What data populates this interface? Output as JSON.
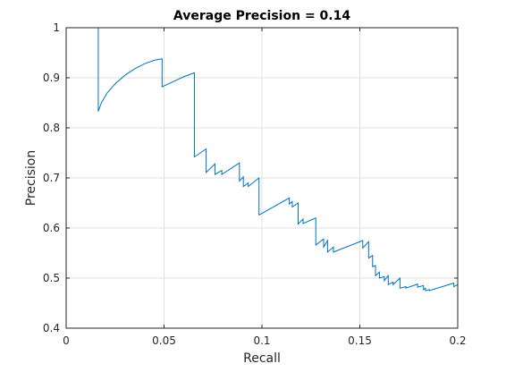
{
  "chart_data": {
    "type": "line",
    "title": "Average Precision = 0.14",
    "xlabel": "Recall",
    "ylabel": "Precision",
    "xlim": [
      0,
      0.2
    ],
    "ylim": [
      0.4,
      1
    ],
    "xticks": [
      0,
      0.05,
      0.1,
      0.15,
      0.2
    ],
    "xtick_labels": [
      "0",
      "0.05",
      "0.1",
      "0.15",
      "0.2"
    ],
    "yticks": [
      0.4,
      0.5,
      0.6,
      0.7,
      0.8,
      0.9,
      1
    ],
    "ytick_labels": [
      "0.4",
      "0.5",
      "0.6",
      "0.7",
      "0.8",
      "0.9",
      "1"
    ],
    "grid": true,
    "box": true,
    "legend": "none",
    "series": [
      {
        "color": "#0072bd",
        "x": [
          0,
          0.0164,
          0.0164,
          0.018,
          0.021,
          0.025,
          0.03,
          0.035,
          0.04,
          0.045,
          0.049,
          0.049,
          0.055,
          0.06,
          0.0655,
          0.0655,
          0.0715,
          0.0715,
          0.076,
          0.076,
          0.0795,
          0.0795,
          0.0885,
          0.0885,
          0.0905,
          0.0905,
          0.093,
          0.093,
          0.0985,
          0.0985,
          0.114,
          0.114,
          0.1155,
          0.1155,
          0.1185,
          0.1185,
          0.121,
          0.121,
          0.1275,
          0.1275,
          0.1315,
          0.1315,
          0.1335,
          0.1335,
          0.1365,
          0.1365,
          0.1515,
          0.1515,
          0.1545,
          0.1545,
          0.1565,
          0.1565,
          0.158,
          0.158,
          0.16,
          0.16,
          0.1625,
          0.1625,
          0.1645,
          0.1645,
          0.167,
          0.167,
          0.1705,
          0.1705,
          0.1735,
          0.1735,
          0.1795,
          0.1795,
          0.1825,
          0.1825,
          0.1835,
          0.1835,
          0.1855,
          0.1855,
          0.198,
          0.198,
          0.2
        ],
        "y": [
          1,
          1,
          0.833,
          0.85,
          0.87,
          0.888,
          0.905,
          0.918,
          0.928,
          0.935,
          0.938,
          0.882,
          0.893,
          0.902,
          0.91,
          0.742,
          0.758,
          0.711,
          0.728,
          0.707,
          0.715,
          0.707,
          0.73,
          0.694,
          0.702,
          0.683,
          0.69,
          0.683,
          0.7,
          0.626,
          0.66,
          0.648,
          0.653,
          0.642,
          0.65,
          0.608,
          0.618,
          0.609,
          0.62,
          0.566,
          0.578,
          0.562,
          0.575,
          0.552,
          0.562,
          0.552,
          0.575,
          0.56,
          0.573,
          0.54,
          0.545,
          0.523,
          0.525,
          0.505,
          0.512,
          0.5,
          0.503,
          0.495,
          0.505,
          0.487,
          0.492,
          0.487,
          0.5,
          0.48,
          0.483,
          0.48,
          0.488,
          0.482,
          0.485,
          0.477,
          0.48,
          0.475,
          0.477,
          0.475,
          0.49,
          0.483,
          0.487
        ]
      }
    ]
  }
}
